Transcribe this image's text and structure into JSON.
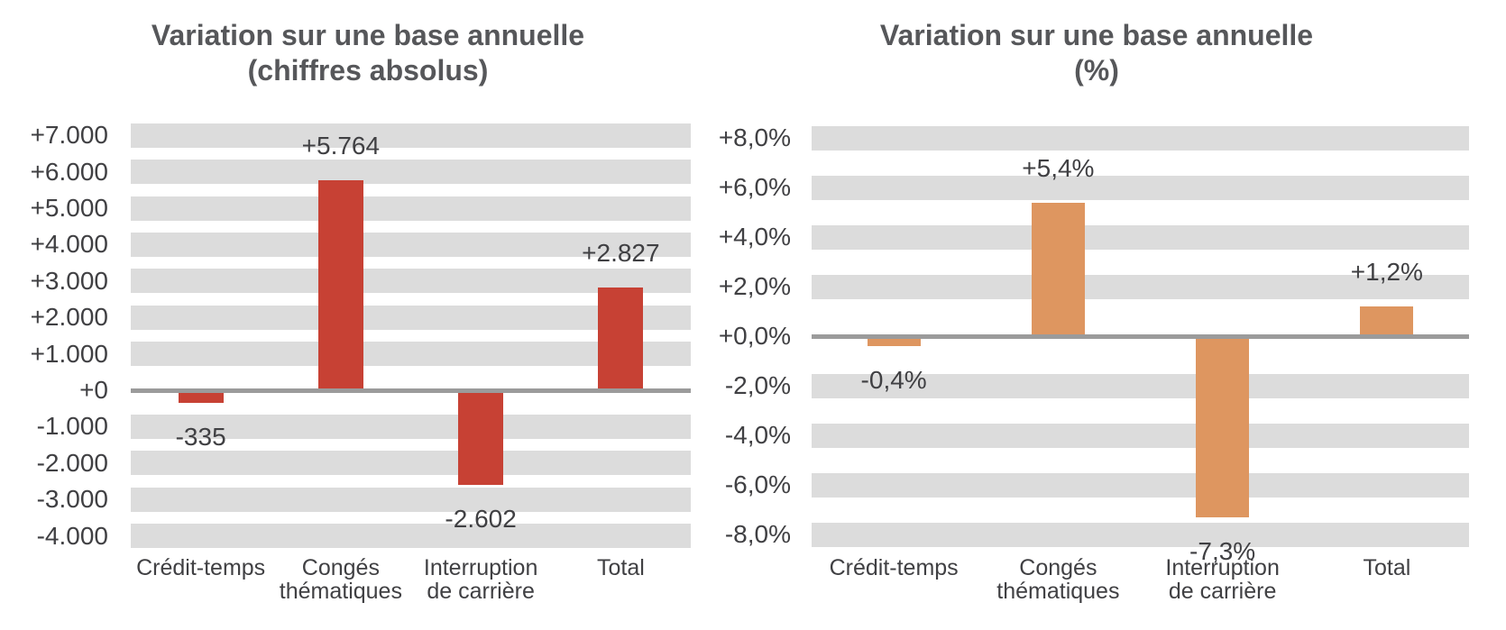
{
  "figure": {
    "background": "#FFFFFF",
    "band_color": "#DCDCDC",
    "axis_line_color": "#9B9B9B",
    "label_color": "#404043",
    "title_color": "#56575A"
  },
  "chart_data": [
    {
      "type": "bar",
      "title": "Variation sur une base annuelle",
      "subtitle": "(chiffres absolus)",
      "categories": [
        "Crédit-temps",
        "Congés thématiques",
        "Interruption de carrière",
        "Total"
      ],
      "values": [
        -335,
        5764,
        -2602,
        2827
      ],
      "value_labels": [
        "-335",
        "+5.764",
        "-2.602",
        "+2.827"
      ],
      "bar_color": "#C74134",
      "ylim": [
        -4000,
        7000
      ],
      "tick_interval": 1000,
      "y_ticks": [
        {
          "label": "+7.000",
          "value": 7000
        },
        {
          "label": "+6.000",
          "value": 6000
        },
        {
          "label": "+5.000",
          "value": 5000
        },
        {
          "label": "+4.000",
          "value": 4000
        },
        {
          "label": "+3.000",
          "value": 3000
        },
        {
          "label": "+2.000",
          "value": 2000
        },
        {
          "label": "+1.000",
          "value": 1000
        },
        {
          "label": "+0",
          "value": 0
        },
        {
          "label": "-1.000",
          "value": -1000
        },
        {
          "label": "-2.000",
          "value": -2000
        },
        {
          "label": "-3.000",
          "value": -3000
        },
        {
          "label": "-4.000",
          "value": -4000
        }
      ],
      "xlabel": "",
      "ylabel": "",
      "grid": "horizontal-bands",
      "legend": "none"
    },
    {
      "type": "bar",
      "title": "Variation sur une base annuelle",
      "subtitle": "(%)",
      "categories": [
        "Crédit-temps",
        "Congés thématiques",
        "Interruption de carrière",
        "Total"
      ],
      "values": [
        -0.4,
        5.4,
        -7.3,
        1.2
      ],
      "value_labels": [
        "-0,4%",
        "+5,4%",
        "-7,3%",
        "+1,2%"
      ],
      "bar_color": "#DE9660",
      "ylim": [
        -8,
        8
      ],
      "tick_interval": 2,
      "y_ticks": [
        {
          "label": "+8,0%",
          "value": 8
        },
        {
          "label": "+6,0%",
          "value": 6
        },
        {
          "label": "+4,0%",
          "value": 4
        },
        {
          "label": "+2,0%",
          "value": 2
        },
        {
          "label": "+0,0%",
          "value": 0
        },
        {
          "label": "-2,0%",
          "value": -2
        },
        {
          "label": "-4,0%",
          "value": -4
        },
        {
          "label": "-6,0%",
          "value": -6
        },
        {
          "label": "-8,0%",
          "value": -8
        }
      ],
      "xlabel": "",
      "ylabel": "",
      "grid": "horizontal-bands",
      "legend": "none"
    }
  ]
}
